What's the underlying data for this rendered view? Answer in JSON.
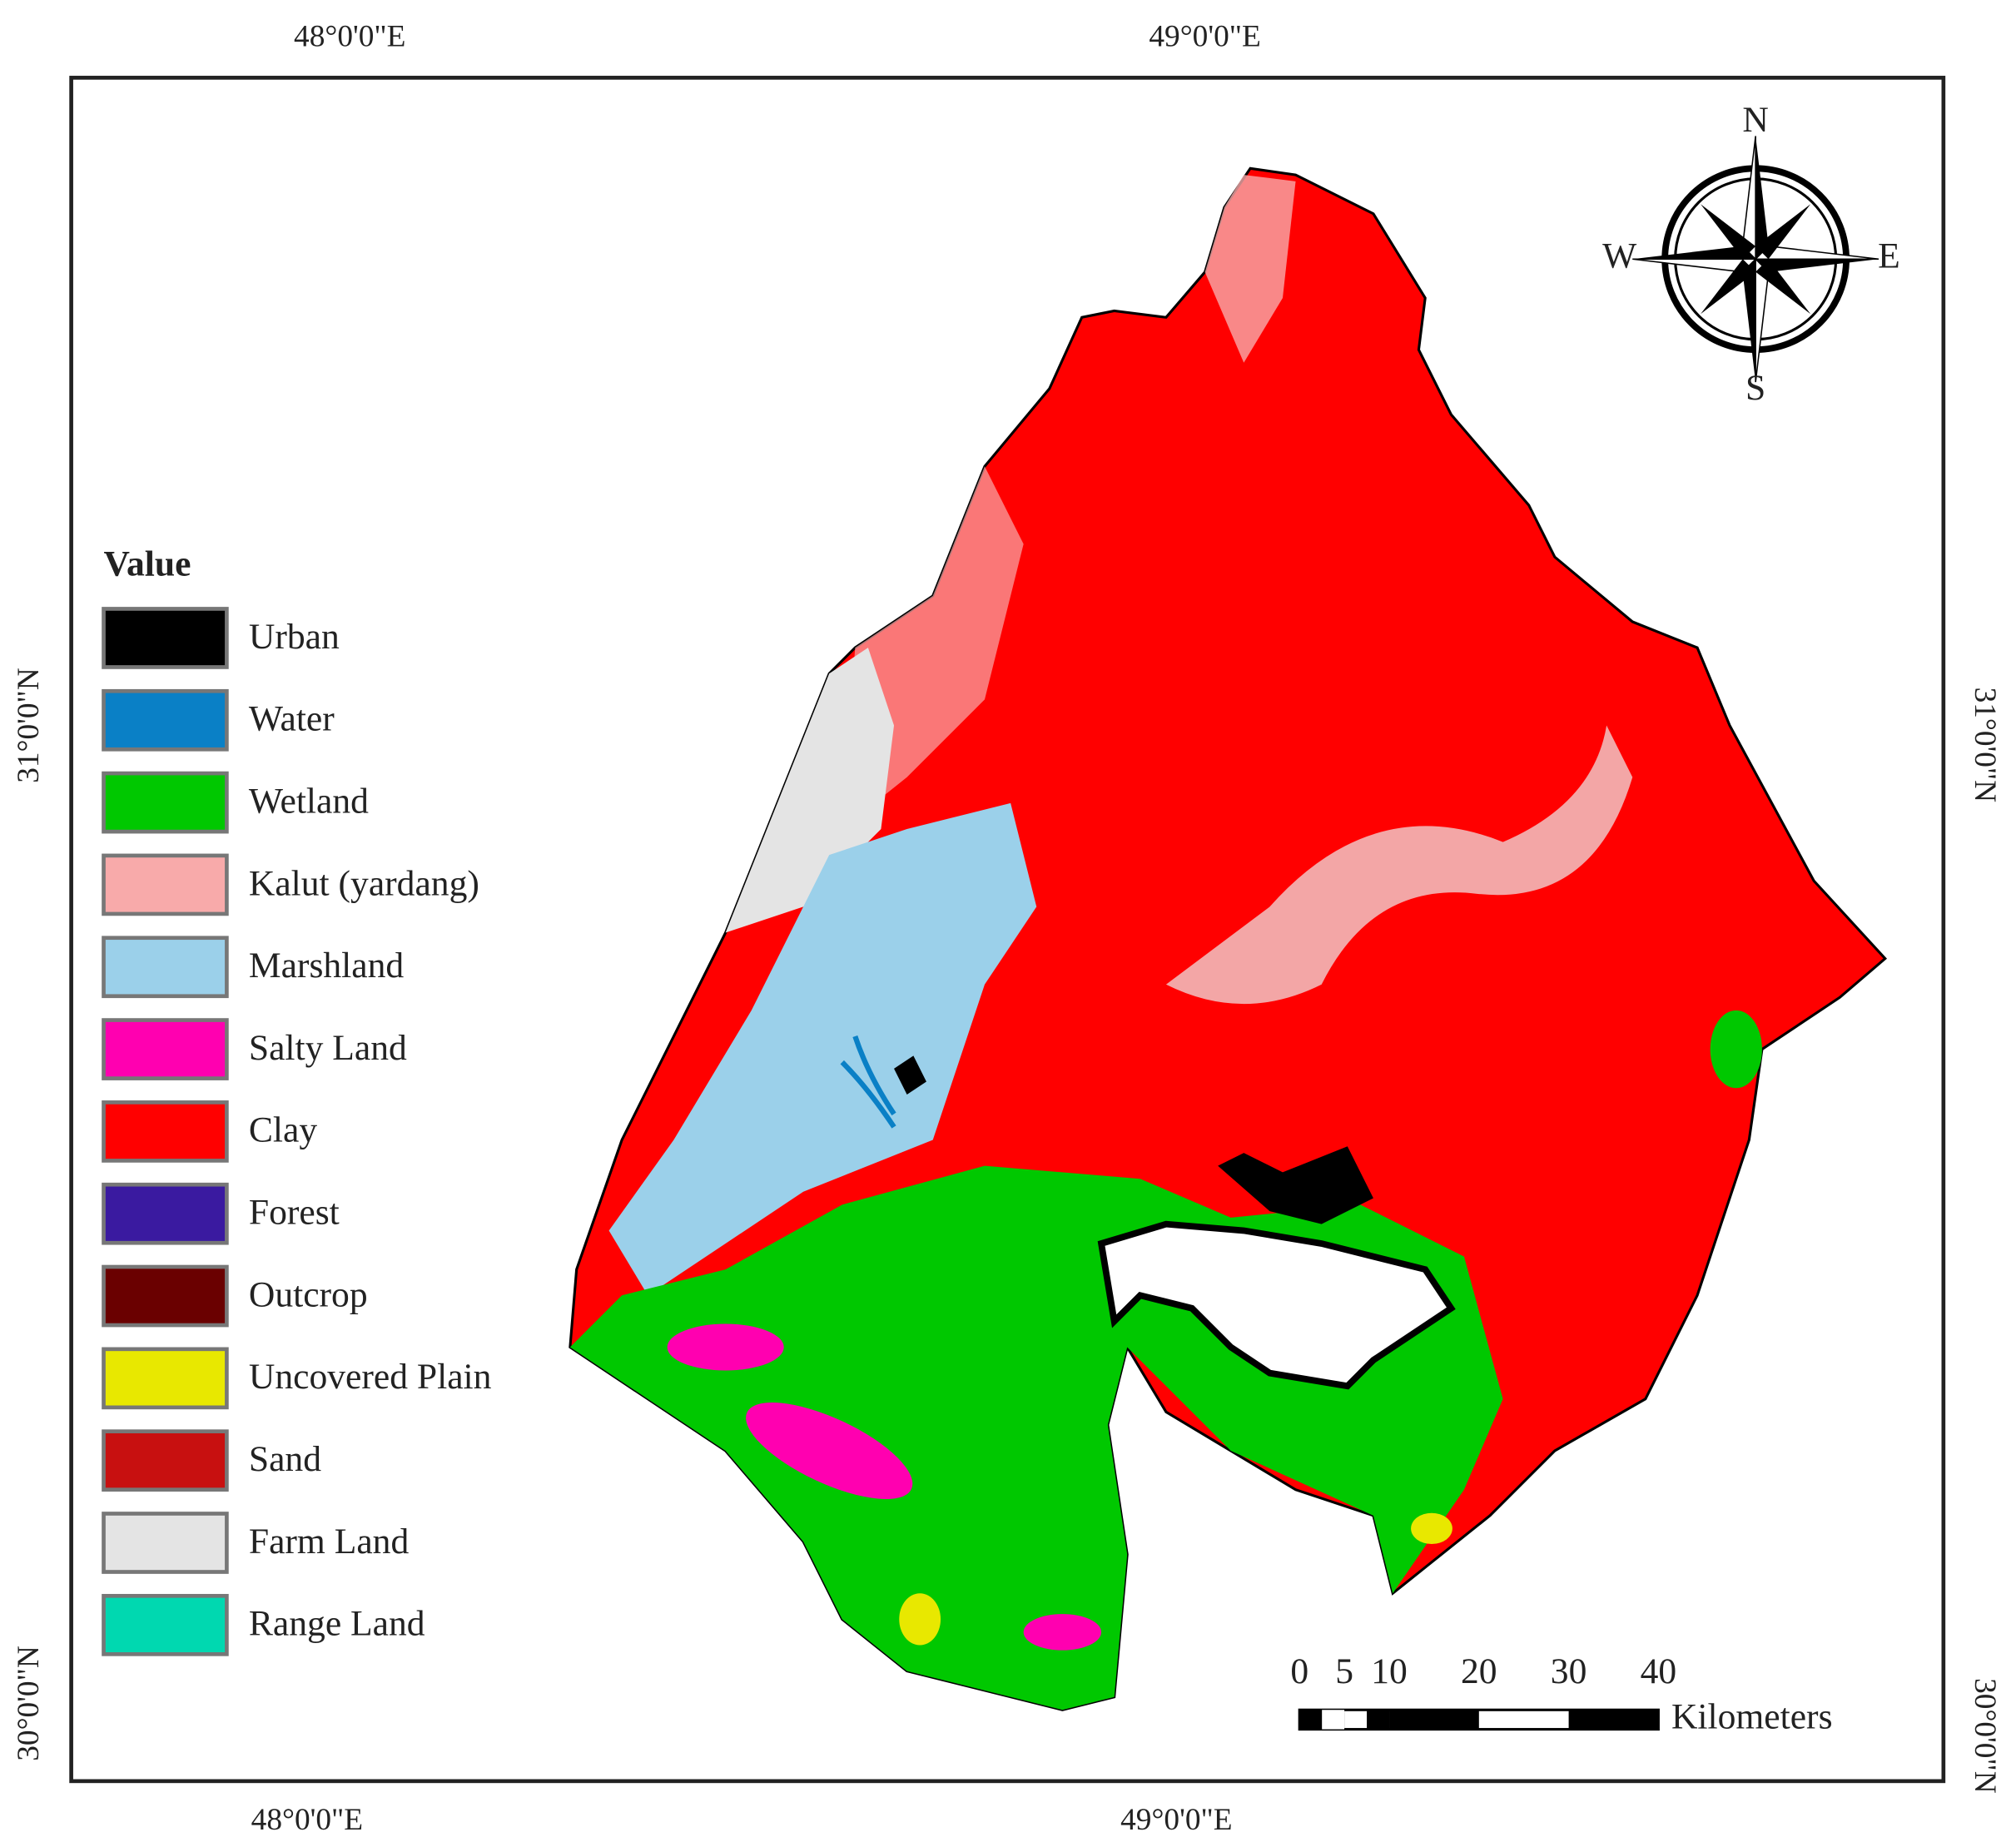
{
  "map": {
    "coordinate_labels": {
      "top": [
        "48°0'0\"E",
        "49°0'0\"E"
      ],
      "bottom": [
        "48°0'0\"E",
        "49°0'0\"E"
      ],
      "left": [
        "31°0'0\"N",
        "30°0'0\"N"
      ],
      "right": [
        "31°0'0\"N",
        "30°0'0\"N"
      ]
    },
    "compass": {
      "north": "N",
      "south": "S",
      "west": "W",
      "east": "E"
    },
    "legend": {
      "title": "Value",
      "items": [
        {
          "label": "Urban",
          "color": "#000000"
        },
        {
          "label": "Water",
          "color": "#0a80c6"
        },
        {
          "label": "Wetland",
          "color": "#00c800"
        },
        {
          "label": "Kalut (yardang)",
          "color": "#f8aaaa"
        },
        {
          "label": "Marshland",
          "color": "#9bd0ea"
        },
        {
          "label": "Salty Land",
          "color": "#ff00b0"
        },
        {
          "label": "Clay",
          "color": "#ff0000"
        },
        {
          "label": "Forest",
          "color": "#3a1aa0"
        },
        {
          "label": "Outcrop",
          "color": "#6a0000"
        },
        {
          "label": "Uncovered Plain",
          "color": "#e8e800"
        },
        {
          "label": "Sand",
          "color": "#c81010"
        },
        {
          "label": "Farm Land",
          "color": "#e4e4e4"
        },
        {
          "label": "Range Land",
          "color": "#00d8b0"
        }
      ]
    },
    "scale_bar": {
      "ticks": [
        0,
        5,
        10,
        20,
        30,
        40
      ],
      "unit": "Kilometers"
    }
  }
}
